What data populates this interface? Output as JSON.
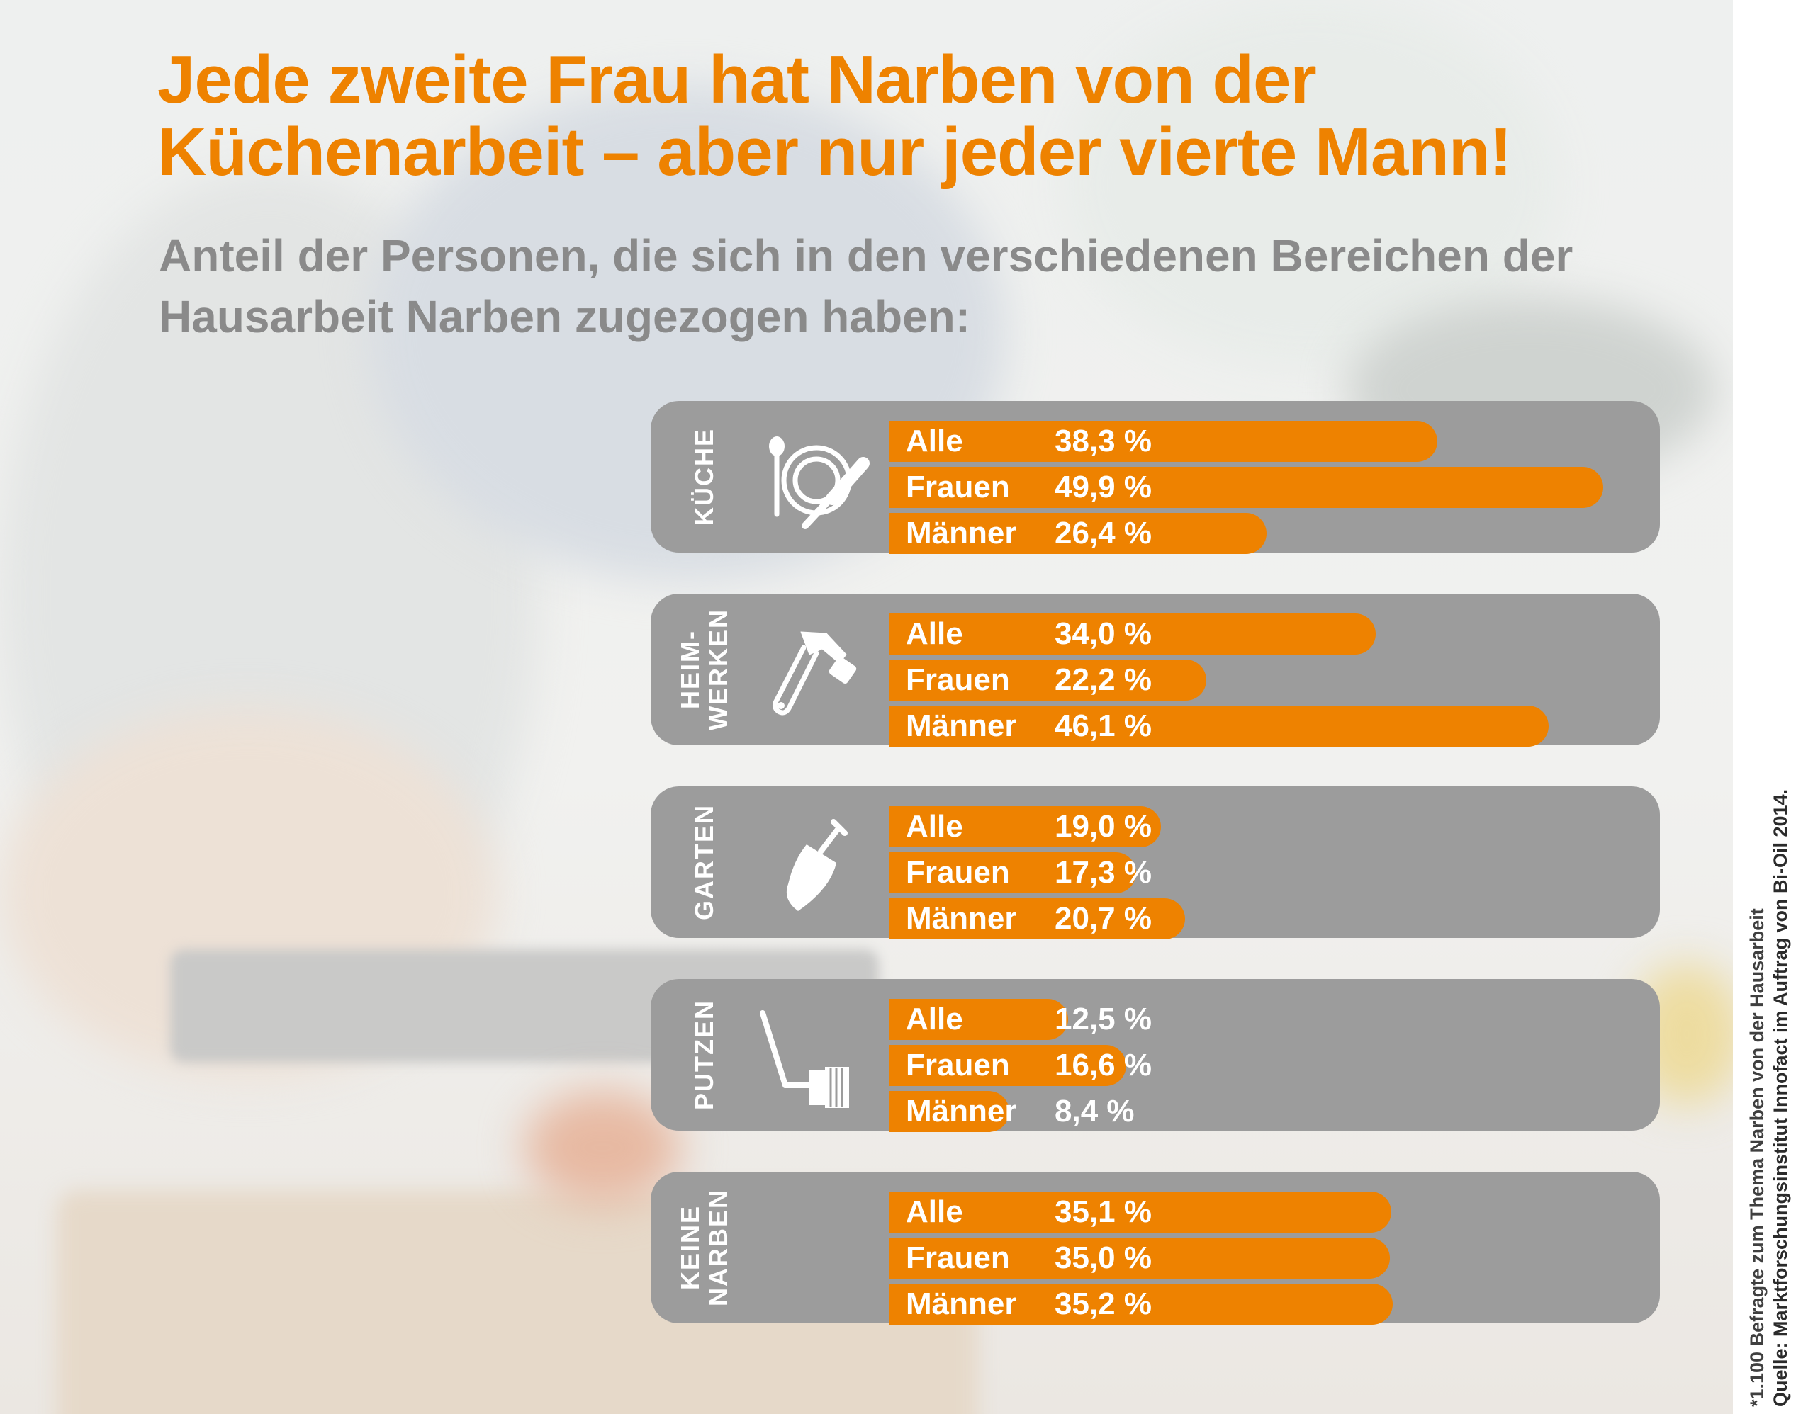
{
  "chart_data": {
    "type": "bar",
    "orientation": "horizontal",
    "title": [
      "Jede zweite Frau hat Narben von der",
      "Küchenarbeit – aber nur jeder vierte Mann!"
    ],
    "subtitle": [
      "Anteil der Personen, die sich in den verschiedenen Bereichen der",
      "Hausarbeit Narben zugezogen haben:"
    ],
    "unit": "%",
    "xlim": [
      0,
      50
    ],
    "groups": [
      {
        "label": [
          "KÜCHE"
        ],
        "icon": "plate-cutlery-icon",
        "bars": [
          {
            "label": "Alle",
            "value": 38.3,
            "display": "38,3 %"
          },
          {
            "label": "Frauen",
            "value": 49.9,
            "display": "49,9 %"
          },
          {
            "label": "Männer",
            "value": 26.4,
            "display": "26,4 %"
          }
        ]
      },
      {
        "label": [
          "HEIM-",
          "WERKEN"
        ],
        "icon": "hammer-icon",
        "bars": [
          {
            "label": "Alle",
            "value": 34.0,
            "display": "34,0 %"
          },
          {
            "label": "Frauen",
            "value": 22.2,
            "display": "22,2 %"
          },
          {
            "label": "Männer",
            "value": 46.1,
            "display": "46,1 %"
          }
        ]
      },
      {
        "label": [
          "GARTEN"
        ],
        "icon": "trowel-icon",
        "bars": [
          {
            "label": "Alle",
            "value": 19.0,
            "display": "19,0 %"
          },
          {
            "label": "Frauen",
            "value": 17.3,
            "display": "17,3 %"
          },
          {
            "label": "Männer",
            "value": 20.7,
            "display": "20,7 %"
          }
        ]
      },
      {
        "label": [
          "PUTZEN"
        ],
        "icon": "scrub-brush-icon",
        "bars": [
          {
            "label": "Alle",
            "value": 12.5,
            "display": "12,5 %"
          },
          {
            "label": "Frauen",
            "value": 16.6,
            "display": "16,6 %"
          },
          {
            "label": "Männer",
            "value": 8.4,
            "display": "8,4 %"
          }
        ]
      },
      {
        "label": [
          "KEINE",
          "NARBEN"
        ],
        "icon": "",
        "bars": [
          {
            "label": "Alle",
            "value": 35.1,
            "display": "35,1 %"
          },
          {
            "label": "Frauen",
            "value": 35.0,
            "display": "35,0 %"
          },
          {
            "label": "Männer",
            "value": 35.2,
            "display": "35,2 %"
          }
        ]
      }
    ],
    "source": [
      "*1.100 Befragte zum Thema Narben von der Hausarbeit",
      "Quelle: Marktforschungsinstitut Innofact im Auftrag von Bi-Oil 2014."
    ],
    "colors": {
      "bar": "#ee8200",
      "panel": "#9c9c9c",
      "title": "#ee8200",
      "subtitle": "#8a8a8a"
    }
  }
}
